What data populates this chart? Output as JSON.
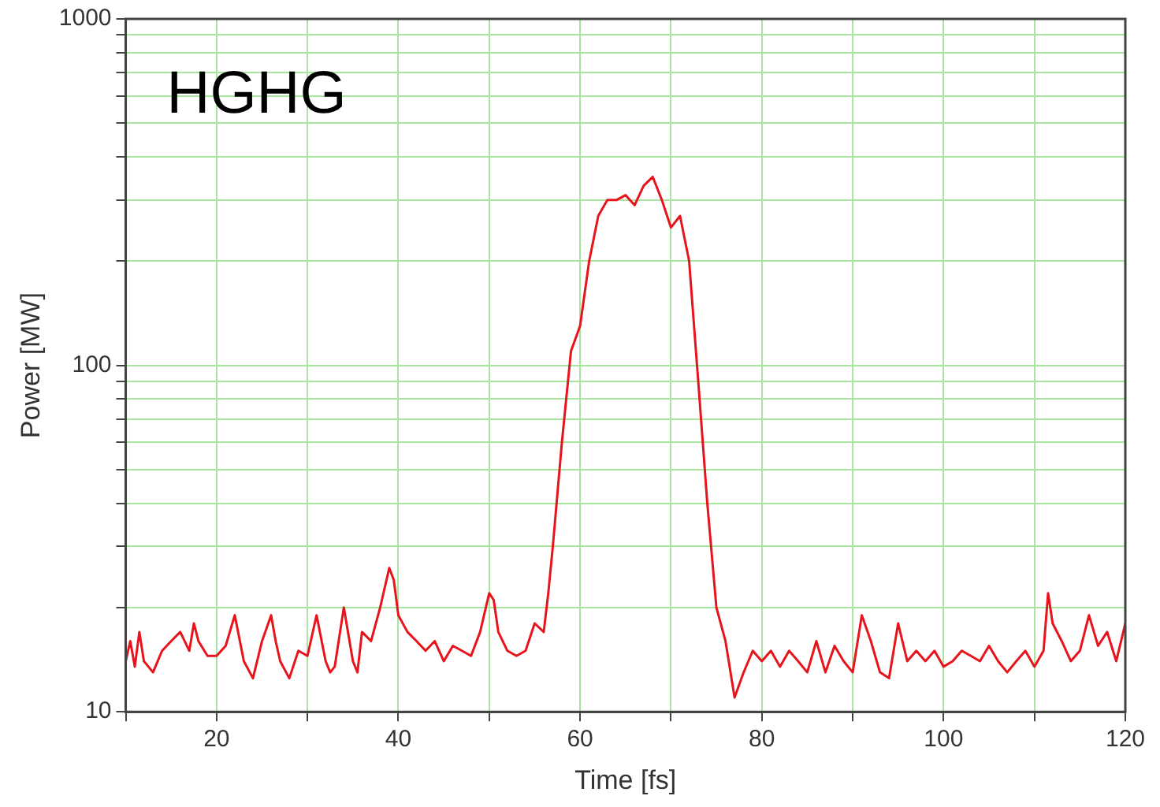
{
  "chart_data": {
    "type": "line",
    "xlabel": "Time [fs]",
    "ylabel": "Power [MW]",
    "annotations": [
      "HGHG"
    ],
    "log": "y",
    "grid": true,
    "legend": false,
    "marker": "none",
    "line_style": "solid",
    "xlim": [
      10,
      120
    ],
    "xticks": [
      {
        "value": 10,
        "label": null
      },
      20,
      {
        "value": 30,
        "label": null
      },
      40,
      {
        "value": 50,
        "label": null
      },
      60,
      {
        "value": 70,
        "label": null
      },
      80,
      {
        "value": 90,
        "label": null
      },
      100,
      {
        "value": 110,
        "label": null
      },
      120
    ],
    "ylim": [
      10,
      1000
    ],
    "yticks": [
      10,
      {
        "value": 20,
        "label": null
      },
      {
        "value": 30,
        "label": null
      },
      {
        "value": 40,
        "label": null
      },
      {
        "value": 50,
        "label": null
      },
      {
        "value": 60,
        "label": null
      },
      {
        "value": 70,
        "label": null
      },
      {
        "value": 80,
        "label": null
      },
      {
        "value": 90,
        "label": null
      },
      100,
      {
        "value": 200,
        "label": null
      },
      {
        "value": 300,
        "label": null
      },
      {
        "value": 400,
        "label": null
      },
      {
        "value": 500,
        "label": null
      },
      {
        "value": 600,
        "label": null
      },
      {
        "value": 700,
        "label": null
      },
      {
        "value": 800,
        "label": null
      },
      {
        "value": 900,
        "label": null
      },
      1000
    ],
    "series": [
      {
        "color": "#e8141c",
        "x": [
          10,
          10.5,
          11,
          11.5,
          12,
          12.5,
          13,
          14,
          15,
          16,
          17,
          17.5,
          18,
          19,
          20,
          21,
          22,
          23,
          24,
          25,
          26,
          26.5,
          27,
          28,
          29,
          30,
          31,
          32,
          32.5,
          33,
          34,
          35,
          35.5,
          36,
          37,
          38,
          39,
          39.5,
          40,
          41,
          42,
          43,
          44,
          45,
          46,
          47,
          48,
          49,
          50,
          50.5,
          51,
          52,
          53,
          54,
          55,
          56,
          56.5,
          57,
          58,
          59,
          60,
          61,
          62,
          63,
          64,
          65,
          66,
          67,
          68,
          69,
          70,
          71,
          72,
          73,
          74,
          75,
          76,
          77,
          78,
          79,
          80,
          81,
          82,
          83,
          84,
          85,
          86,
          87,
          88,
          89,
          90,
          91,
          92,
          93,
          94,
          95,
          96,
          97,
          98,
          99,
          100,
          101,
          102,
          103,
          104,
          105,
          106,
          107,
          108,
          109,
          110,
          111,
          111.5,
          112,
          113,
          114,
          115,
          116,
          117,
          118,
          119,
          120
        ],
        "values": [
          14,
          16,
          13.5,
          17,
          14,
          13.5,
          13,
          15,
          16,
          17,
          15,
          18,
          16,
          14.5,
          14.5,
          15.5,
          19,
          14,
          12.5,
          16,
          19,
          16,
          14,
          12.5,
          15,
          14.5,
          19,
          14,
          13,
          13.5,
          20,
          14,
          13,
          17,
          16,
          20,
          26,
          24,
          19,
          17,
          16,
          15,
          16,
          14,
          15.5,
          15,
          14.5,
          17,
          22,
          21,
          17,
          15,
          14.5,
          15,
          18,
          17,
          22,
          30,
          60,
          110,
          130,
          200,
          270,
          300,
          300,
          310,
          290,
          330,
          350,
          300,
          250,
          270,
          200,
          90,
          40,
          20,
          16,
          11,
          13,
          15,
          14,
          15,
          13.5,
          15,
          14,
          13,
          16,
          13,
          15.5,
          14,
          13,
          19,
          16,
          13,
          12.5,
          18,
          14,
          15,
          14,
          15,
          13.5,
          14,
          15,
          14.5,
          14,
          15.5,
          14,
          13,
          14,
          15,
          13.5,
          15,
          22,
          18,
          16,
          14,
          15,
          19,
          15.5,
          17,
          14,
          18
        ]
      }
    ]
  }
}
